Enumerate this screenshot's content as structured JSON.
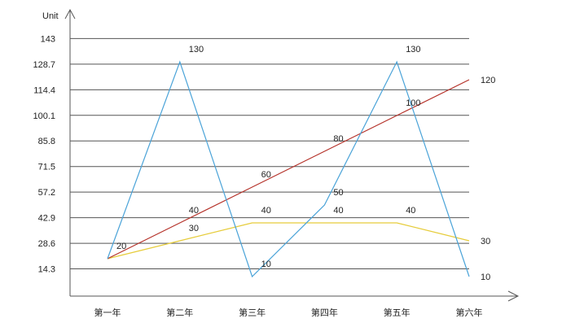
{
  "chart_data": {
    "type": "line",
    "title": "",
    "xlabel": "",
    "ylabel": "Unit",
    "categories": [
      "第一年",
      "第二年",
      "第三年",
      "第四年",
      "第五年",
      "第六年"
    ],
    "y_ticks": [
      "14.3",
      "28.6",
      "42.9",
      "57.2",
      "71.5",
      "85.8",
      "100.1",
      "114.4",
      "128.7",
      "143"
    ],
    "ylim": [
      0,
      143
    ],
    "grid": true,
    "legend": "none",
    "series": [
      {
        "color": "#4aa3d8",
        "values": [
          20,
          130,
          10,
          50,
          130,
          10
        ],
        "labels": [
          "",
          "130",
          "10",
          "50",
          "130",
          "10"
        ]
      },
      {
        "color": "#b5322a",
        "values": [
          20,
          40,
          60,
          80,
          100,
          120
        ],
        "labels": [
          "20",
          "40",
          "60",
          "80",
          "100",
          "120"
        ]
      },
      {
        "color": "#e6cc3a",
        "values": [
          20,
          30,
          40,
          40,
          40,
          30
        ],
        "labels": [
          "",
          "30",
          "40",
          "40",
          "40",
          "30"
        ]
      }
    ]
  }
}
